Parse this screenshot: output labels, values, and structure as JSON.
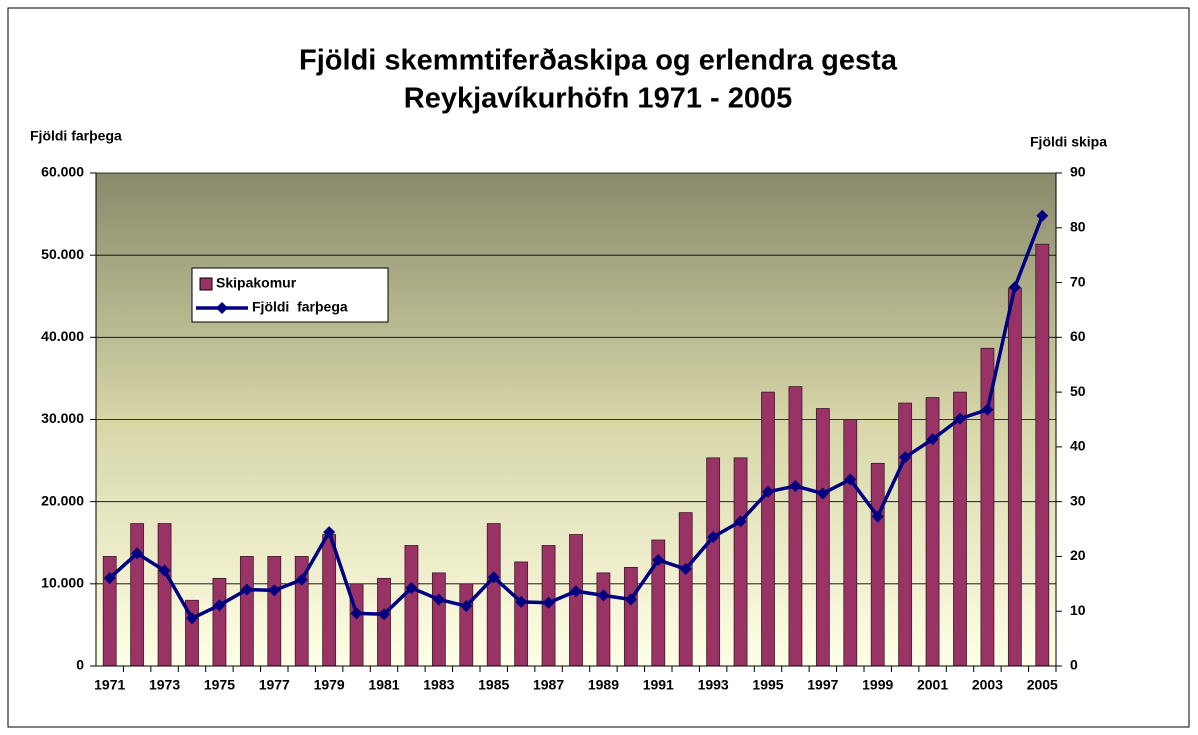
{
  "chart_data": {
    "type": "bar_line",
    "title": [
      "Fjöldi skemmtiferðaskipa og erlendra gesta",
      "Reykjavíkurhöfn 1971 - 2005"
    ],
    "ylabel": "Fjöldi farþega",
    "y2label": "Fjöldi skipa",
    "categories": [
      "1971",
      null,
      "1973",
      null,
      "1975",
      null,
      "1977",
      null,
      "1979",
      null,
      "1981",
      null,
      "1983",
      null,
      "1985",
      null,
      "1987",
      null,
      "1989",
      null,
      "1991",
      null,
      "1993",
      null,
      "1995",
      null,
      "1997",
      null,
      "1999",
      null,
      "2001",
      null,
      "2003",
      null,
      "2005"
    ],
    "series": [
      {
        "name": "Skipakomur",
        "type": "bar",
        "axis": "y2",
        "color": "#993366",
        "values": [
          20,
          26,
          26,
          12,
          16,
          20,
          20,
          20,
          24,
          15,
          16,
          22,
          17,
          15,
          26,
          19,
          22,
          24,
          17,
          18,
          23,
          28,
          38,
          38,
          50,
          51,
          47,
          45,
          37,
          48,
          49,
          50,
          58,
          69,
          77
        ]
      },
      {
        "name": "Fjöldi  farþega",
        "type": "line",
        "axis": "y",
        "color": "#000080",
        "values": [
          10700,
          13700,
          11600,
          5800,
          7400,
          9300,
          9200,
          10500,
          16300,
          6400,
          6300,
          9500,
          8100,
          7300,
          10800,
          7800,
          7700,
          9100,
          8600,
          8100,
          12900,
          11800,
          15700,
          17600,
          21200,
          21900,
          21000,
          22700,
          18200,
          25400,
          27600,
          30100,
          31200,
          46100,
          54800
        ]
      }
    ],
    "ylim": [
      0,
      60000
    ],
    "yticks": [
      0,
      {
        "value": 10000,
        "label": "10.000"
      },
      {
        "value": 20000,
        "label": "20.000"
      },
      {
        "value": 30000,
        "label": "30.000"
      },
      {
        "value": 40000,
        "label": "40.000"
      },
      {
        "value": 50000,
        "label": "50.000"
      },
      {
        "value": 60000,
        "label": "60.000"
      }
    ],
    "y2lim": [
      0,
      90
    ],
    "y2ticks": [
      0,
      10,
      20,
      30,
      40,
      50,
      60,
      70,
      80,
      90
    ],
    "grid": true
  }
}
